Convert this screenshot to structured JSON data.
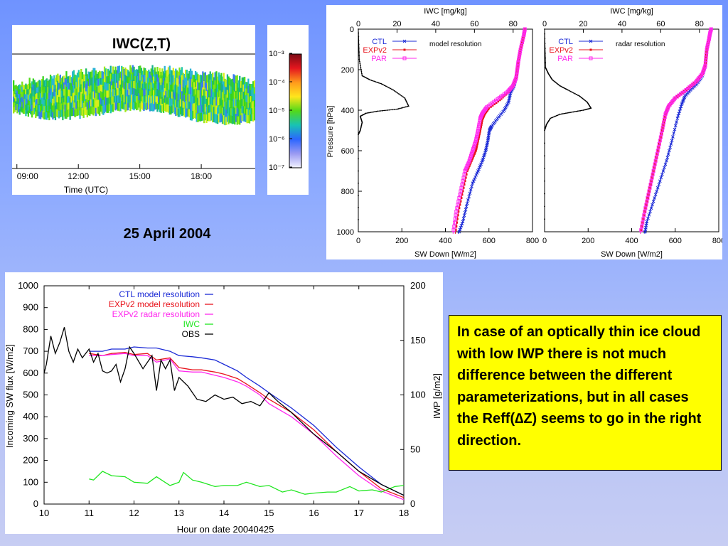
{
  "date_label": "25 April 2004",
  "note": "In case of an optically thin ice cloud with low IWP there is not much difference between the different parameterizations, but in all cases the Reff(∆Z) seems to go in the right direction.",
  "colors": {
    "ctl": "#1b2ad6",
    "expv2": "#e8141c",
    "par": "#ff28ee",
    "iwc": "#1ee61e",
    "obs": "#000000",
    "note_bg": "#ffff00"
  },
  "chart_data": [
    {
      "type": "heatmap",
      "title": "IWC(Z,T)",
      "xlabel": "Time (UTC)",
      "x_ticks": [
        "09:00",
        "12:00",
        "15:00",
        "18:00"
      ],
      "xlim_hours": [
        8.8,
        20.6
      ],
      "cloud_extent_hours": [
        8.8,
        20.6
      ],
      "colorscale": {
        "tick_labels": [
          "10⁻³",
          "10⁻⁴",
          "10⁻⁵",
          "10⁻⁶",
          "10⁻⁷"
        ],
        "colors": [
          "#7a0a14",
          "#e4161e",
          "#ff9a1c",
          "#ffe61c",
          "#52d91a",
          "#18c2b4",
          "#2b66ff",
          "#9a9af2",
          "#f2f2ff"
        ]
      }
    },
    {
      "type": "line",
      "subtitle": "model resolution",
      "xlabel_top": "IWC [mg/kg]",
      "xlabel_bottom": "SW Down [W/m2]",
      "ylabel": "Pressure [hPa]",
      "top_ticks": [
        0,
        20,
        40,
        60,
        80
      ],
      "bottom_ticks": [
        0,
        200,
        400,
        600,
        800
      ],
      "left_ticks": [
        0,
        200,
        400,
        600,
        800,
        1000
      ],
      "xlim": [
        0,
        800
      ],
      "ylim": [
        1000,
        0
      ],
      "inverted_y": true,
      "iwc_profile": {
        "x": [
          0,
          0.5,
          2,
          6,
          12,
          18,
          24,
          26,
          20,
          10,
          4,
          1,
          2,
          1,
          0,
          0
        ],
        "y": [
          0,
          150,
          230,
          250,
          270,
          300,
          340,
          380,
          395,
          405,
          415,
          430,
          460,
          500,
          520,
          1000
        ]
      },
      "series": [
        {
          "name": "CTL",
          "x": [
            765,
            760,
            745,
            735,
            730,
            725,
            715,
            700,
            690,
            670,
            640,
            612,
            602,
            595,
            585,
            570,
            550,
            525,
            500,
            480,
            460
          ],
          "y": [
            0,
            30,
            100,
            160,
            200,
            240,
            280,
            310,
            360,
            400,
            440,
            480,
            500,
            550,
            600,
            650,
            700,
            760,
            860,
            950,
            1010
          ]
        },
        {
          "name": "EXPv2",
          "x": [
            765,
            760,
            745,
            735,
            730,
            725,
            712,
            690,
            650,
            600,
            580,
            570,
            560,
            550,
            540,
            520,
            500,
            480,
            460,
            445
          ],
          "y": [
            0,
            30,
            100,
            160,
            200,
            240,
            280,
            310,
            350,
            390,
            420,
            445,
            500,
            550,
            600,
            650,
            700,
            800,
            900,
            1010
          ]
        },
        {
          "name": "PAR",
          "x": [
            765,
            760,
            745,
            735,
            730,
            725,
            710,
            685,
            640,
            590,
            570,
            560,
            550,
            540,
            525,
            510,
            490,
            470,
            450,
            435
          ],
          "y": [
            0,
            30,
            100,
            160,
            200,
            240,
            280,
            310,
            345,
            385,
            415,
            440,
            500,
            550,
            600,
            650,
            700,
            800,
            900,
            1010
          ]
        }
      ]
    },
    {
      "type": "line",
      "subtitle": "radar resolution",
      "xlabel_top": "IWC [mg/kg]",
      "xlabel_bottom": "SW Down [W/m2]",
      "top_ticks": [
        0,
        20,
        40,
        60,
        80
      ],
      "bottom_ticks": [
        0,
        200,
        400,
        600,
        800
      ],
      "xlim": [
        0,
        800
      ],
      "ylim": [
        1000,
        0
      ],
      "inverted_y": true,
      "iwc_profile": {
        "x": [
          0,
          0.5,
          2,
          4,
          8,
          12,
          18,
          22,
          24,
          20,
          14,
          8,
          3,
          1,
          0,
          0
        ],
        "y": [
          0,
          190,
          220,
          250,
          280,
          300,
          330,
          360,
          390,
          400,
          410,
          420,
          440,
          470,
          500,
          1000
        ]
      },
      "series": [
        {
          "name": "CTL",
          "x": [
            765,
            760,
            755,
            745,
            738,
            725,
            700,
            670,
            645,
            630,
            610,
            585,
            560,
            530,
            500,
            470,
            460
          ],
          "y": [
            0,
            20,
            50,
            100,
            180,
            230,
            270,
            300,
            330,
            370,
            440,
            550,
            650,
            750,
            850,
            950,
            1010
          ]
        },
        {
          "name": "EXPv2",
          "x": [
            765,
            760,
            755,
            745,
            738,
            725,
            695,
            650,
            600,
            570,
            555,
            540,
            520,
            500,
            480,
            460,
            440
          ],
          "y": [
            0,
            20,
            50,
            100,
            180,
            220,
            260,
            300,
            340,
            380,
            420,
            500,
            600,
            700,
            800,
            900,
            1010
          ]
        },
        {
          "name": "PAR",
          "x": [
            765,
            760,
            755,
            745,
            738,
            725,
            695,
            650,
            600,
            570,
            555,
            540,
            520,
            500,
            480,
            460,
            440
          ],
          "y": [
            0,
            20,
            50,
            100,
            180,
            220,
            260,
            300,
            340,
            380,
            420,
            500,
            600,
            700,
            800,
            900,
            1010
          ]
        }
      ]
    },
    {
      "type": "line",
      "xlabel": "Hour on date 20040425",
      "ylabel": "Incoming SW flux [W/m2]",
      "y2label": "IWP [g/m2]",
      "xlim": [
        10,
        18
      ],
      "ylim": [
        0,
        1000
      ],
      "y2lim": [
        0,
        200
      ],
      "x_ticks": [
        10,
        11,
        12,
        13,
        14,
        15,
        16,
        17,
        18
      ],
      "y_ticks": [
        0,
        100,
        200,
        300,
        400,
        500,
        600,
        700,
        800,
        900,
        1000
      ],
      "y2_ticks": [
        0,
        50,
        100,
        150,
        200
      ],
      "legend_position": "top-right",
      "series": [
        {
          "name": "CTL model resolution",
          "x": [
            11.0,
            11.3,
            11.5,
            11.8,
            12.0,
            12.3,
            12.5,
            12.8,
            13.0,
            13.3,
            13.5,
            13.8,
            14.0,
            14.3,
            14.5,
            14.8,
            15.0,
            15.5,
            16.0,
            16.5,
            17.0,
            17.5,
            18.0
          ],
          "y": [
            700,
            700,
            710,
            710,
            720,
            715,
            715,
            700,
            680,
            675,
            670,
            660,
            640,
            610,
            580,
            540,
            510,
            440,
            360,
            260,
            170,
            90,
            40
          ]
        },
        {
          "name": "EXPv2 model resolution",
          "x": [
            11.0,
            11.3,
            11.5,
            11.8,
            12.0,
            12.3,
            12.5,
            12.8,
            13.0,
            13.3,
            13.5,
            13.8,
            14.0,
            14.3,
            14.5,
            14.8,
            15.0,
            15.5,
            16.0,
            16.5,
            17.0,
            17.5,
            18.0
          ],
          "y": [
            690,
            680,
            690,
            695,
            685,
            690,
            660,
            670,
            625,
            615,
            615,
            605,
            595,
            575,
            550,
            510,
            480,
            420,
            340,
            240,
            150,
            70,
            30
          ]
        },
        {
          "name": "EXPv2 radar resolution",
          "x": [
            11.0,
            11.3,
            11.5,
            11.8,
            12.0,
            12.3,
            12.5,
            12.8,
            13.0,
            13.3,
            13.5,
            13.8,
            14.0,
            14.3,
            14.5,
            14.8,
            15.0,
            15.5,
            16.0,
            16.5,
            17.0,
            17.5,
            18.0
          ],
          "y": [
            680,
            680,
            685,
            690,
            680,
            680,
            650,
            665,
            610,
            605,
            605,
            590,
            580,
            560,
            540,
            500,
            460,
            400,
            320,
            220,
            130,
            60,
            20
          ]
        },
        {
          "name": "IWC",
          "axis": "right",
          "x": [
            11.0,
            11.1,
            11.3,
            11.5,
            11.8,
            12.0,
            12.3,
            12.5,
            12.8,
            13.0,
            13.1,
            13.3,
            13.5,
            13.8,
            14.0,
            14.3,
            14.5,
            14.8,
            15.0,
            15.3,
            15.5,
            15.8,
            16.0,
            16.3,
            16.5,
            16.8,
            17.0,
            17.3,
            17.5,
            17.8,
            18.0
          ],
          "y": [
            23,
            22,
            30,
            26,
            25,
            20,
            19,
            25,
            17,
            20,
            29,
            22,
            20,
            16,
            17,
            17,
            20,
            16,
            17,
            11,
            13,
            9,
            10,
            11,
            11,
            16,
            12,
            13,
            11,
            16,
            17
          ]
        },
        {
          "name": "OBS",
          "x": [
            10.0,
            10.05,
            10.15,
            10.25,
            10.35,
            10.45,
            10.55,
            10.65,
            10.75,
            10.85,
            11.0,
            11.1,
            11.2,
            11.3,
            11.4,
            11.5,
            11.6,
            11.7,
            11.8,
            11.9,
            12.0,
            12.2,
            12.4,
            12.5,
            12.6,
            12.7,
            12.8,
            12.9,
            13.0,
            13.2,
            13.4,
            13.6,
            13.8,
            14.0,
            14.2,
            14.4,
            14.6,
            14.8,
            15.0,
            15.2,
            15.5,
            16.0,
            16.5,
            17.0,
            17.5,
            18.0
          ],
          "y": [
            600,
            640,
            770,
            690,
            740,
            810,
            700,
            650,
            710,
            670,
            710,
            650,
            690,
            610,
            600,
            610,
            640,
            560,
            620,
            720,
            690,
            620,
            680,
            520,
            660,
            620,
            660,
            520,
            580,
            540,
            480,
            470,
            500,
            480,
            490,
            460,
            470,
            450,
            510,
            470,
            420,
            320,
            240,
            150,
            90,
            40
          ]
        }
      ]
    }
  ]
}
